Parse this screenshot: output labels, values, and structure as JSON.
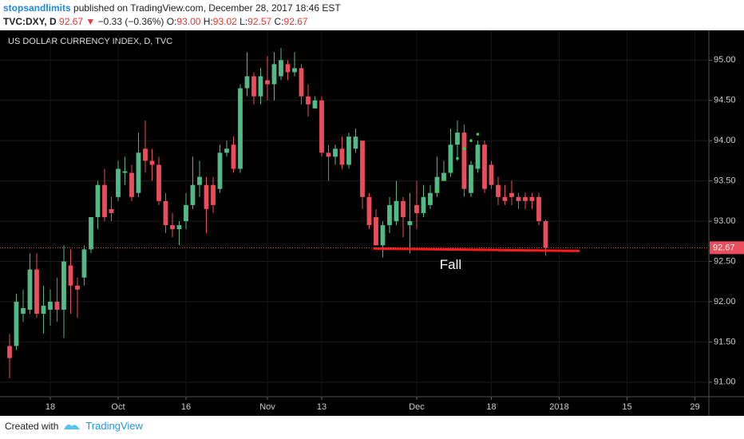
{
  "header": {
    "author": "stopsandlimits",
    "published": "published on TradingView.com, December 28, 2017 18:46 EST",
    "symbol": "TVC:DXY, D",
    "last": "92.67",
    "arrow": "▼",
    "change": "−0.33 (−0.36%)",
    "ohlc": [
      {
        "label": "O:",
        "value": "93.00"
      },
      {
        "label": "H:",
        "value": "93.02"
      },
      {
        "label": "L:",
        "value": "92.57"
      },
      {
        "label": "C:",
        "value": "92.67"
      }
    ]
  },
  "chart_data": {
    "type": "candlestick",
    "title": "US DOLLAR CURRENCY INDEX, D, TVC",
    "up_color": "#53b987",
    "down_color": "#eb4d5c",
    "open": [
      91.45,
      91.45,
      91.85,
      91.9,
      92.4,
      91.85,
      91.9,
      92.0,
      91.9,
      92.45,
      92.2,
      92.3,
      92.65,
      93.05,
      93.45,
      93.15,
      93.3,
      93.6,
      93.6,
      93.35,
      93.9,
      93.75,
      93.7,
      93.25,
      92.95,
      92.9,
      93.0,
      93.2,
      93.45,
      93.45,
      93.45,
      93.4,
      93.85,
      93.95,
      93.65,
      94.65,
      94.8,
      94.55,
      94.75,
      94.7,
      94.8,
      94.95,
      94.85,
      94.9,
      94.55,
      94.4,
      94.5,
      93.85,
      93.8,
      93.9,
      93.7,
      93.9,
      94.0,
      93.3,
      93.05,
      92.7,
      92.95,
      93.0,
      93.25,
      92.95,
      93.2,
      93.1,
      93.2,
      93.35,
      93.5,
      93.6,
      93.95,
      94.1,
      93.35,
      93.65,
      93.95,
      93.7,
      93.45,
      93.3,
      93.35,
      93.3,
      93.3,
      93.3,
      93.3,
      93.0
    ],
    "high": [
      91.6,
      92.1,
      92.15,
      92.6,
      92.6,
      92.2,
      92.15,
      92.3,
      92.7,
      92.65,
      92.3,
      92.7,
      93.05,
      93.5,
      93.65,
      93.3,
      93.75,
      93.8,
      93.7,
      94.1,
      94.25,
      93.9,
      93.8,
      93.35,
      93.1,
      93.0,
      93.35,
      93.8,
      93.75,
      93.55,
      93.55,
      93.95,
      94.0,
      94.05,
      94.7,
      95.1,
      94.85,
      94.9,
      95.05,
      95.1,
      95.15,
      95.0,
      95.1,
      94.95,
      94.7,
      94.55,
      94.55,
      93.95,
      93.95,
      94.05,
      94.1,
      94.15,
      94.0,
      93.35,
      93.15,
      93.0,
      93.3,
      93.5,
      93.3,
      93.35,
      93.5,
      93.45,
      93.45,
      93.8,
      93.75,
      94.15,
      94.25,
      94.2,
      93.75,
      94.0,
      94.0,
      93.75,
      93.55,
      93.45,
      93.5,
      93.35,
      93.35,
      93.35,
      93.35,
      93.02
    ],
    "low": [
      91.05,
      91.4,
      91.75,
      91.85,
      91.8,
      91.6,
      91.7,
      91.75,
      91.55,
      91.85,
      91.8,
      92.2,
      92.6,
      92.9,
      93.0,
      93.0,
      93.25,
      93.45,
      93.25,
      93.3,
      93.6,
      93.5,
      93.2,
      92.85,
      92.8,
      92.7,
      92.9,
      93.15,
      93.3,
      92.85,
      93.1,
      93.35,
      93.8,
      93.6,
      93.6,
      94.55,
      94.45,
      94.45,
      94.5,
      94.5,
      94.75,
      94.75,
      94.8,
      94.45,
      94.3,
      94.4,
      93.8,
      93.5,
      93.7,
      93.65,
      93.65,
      93.85,
      93.15,
      92.9,
      92.7,
      92.55,
      92.85,
      92.95,
      92.8,
      92.6,
      92.9,
      93.05,
      93.15,
      93.3,
      93.5,
      93.55,
      93.75,
      93.3,
      93.3,
      93.6,
      93.35,
      93.4,
      93.2,
      93.2,
      93.2,
      93.15,
      93.15,
      93.15,
      92.95,
      92.57
    ],
    "close": [
      91.3,
      92.0,
      91.92,
      92.4,
      91.85,
      91.95,
      92.0,
      91.9,
      92.5,
      92.2,
      92.15,
      92.65,
      93.05,
      93.45,
      93.05,
      93.1,
      93.65,
      93.62,
      93.3,
      93.85,
      93.75,
      93.7,
      93.25,
      92.95,
      92.9,
      92.95,
      93.2,
      93.45,
      93.55,
      93.15,
      93.2,
      93.85,
      93.9,
      93.65,
      94.65,
      94.8,
      94.55,
      94.8,
      94.7,
      94.95,
      95.0,
      94.85,
      94.9,
      94.55,
      94.45,
      94.5,
      93.85,
      93.8,
      93.9,
      93.7,
      94.05,
      94.05,
      93.3,
      92.95,
      92.7,
      92.95,
      93.2,
      93.25,
      93.05,
      93.0,
      93.1,
      93.3,
      93.35,
      93.55,
      93.6,
      93.95,
      94.1,
      93.4,
      93.7,
      93.95,
      93.4,
      93.45,
      93.3,
      93.25,
      93.3,
      93.25,
      93.25,
      93.25,
      93.0,
      92.67
    ],
    "sar_color": "#2fd64a",
    "sar": [
      null,
      null,
      null,
      null,
      null,
      null,
      null,
      null,
      null,
      null,
      null,
      null,
      null,
      null,
      null,
      null,
      null,
      null,
      null,
      null,
      null,
      null,
      null,
      null,
      null,
      null,
      null,
      null,
      null,
      null,
      null,
      null,
      null,
      null,
      null,
      null,
      null,
      null,
      null,
      null,
      null,
      null,
      null,
      null,
      null,
      null,
      null,
      null,
      null,
      null,
      null,
      null,
      null,
      null,
      null,
      null,
      null,
      null,
      null,
      null,
      null,
      null,
      93.25,
      93.38,
      93.52,
      93.65,
      93.78,
      93.9,
      94.0,
      94.08,
      null,
      null,
      null,
      null,
      null,
      null,
      null,
      null,
      null,
      null
    ],
    "trendline": {
      "x": [
        53.6,
        84
      ],
      "y": [
        92.66,
        92.63
      ],
      "color": "#ff1a1a"
    },
    "annotation": {
      "text": "Fall",
      "x": 65,
      "y": 92.45
    },
    "last_price": {
      "value": 92.67,
      "label": "92.67"
    },
    "xlim": [
      -1.41,
      103.06
    ],
    "ylim": [
      90.82,
      95.37
    ],
    "xticks": [
      {
        "value": 6,
        "label": "18"
      },
      {
        "value": 16,
        "label": "Oct"
      },
      {
        "value": 26,
        "label": "16"
      },
      {
        "value": 38,
        "label": "Nov"
      },
      {
        "value": 46,
        "label": "13"
      },
      {
        "value": 60,
        "label": "Dec"
      },
      {
        "value": 71,
        "label": "18"
      },
      {
        "value": 81,
        "label": "2018"
      },
      {
        "value": 91,
        "label": "15"
      },
      {
        "value": 101,
        "label": "29"
      }
    ],
    "yticks": [
      {
        "value": 91,
        "label": "91.00"
      },
      {
        "value": 91.5,
        "label": "91.50"
      },
      {
        "value": 92,
        "label": "92.00"
      },
      {
        "value": 92.5,
        "label": "92.50"
      },
      {
        "value": 93,
        "label": "93.00"
      },
      {
        "value": 93.5,
        "label": "93.50"
      },
      {
        "value": 94,
        "label": "94.00"
      },
      {
        "value": 94.5,
        "label": "94.50"
      },
      {
        "value": 95,
        "label": "95.00"
      }
    ],
    "grid": true
  },
  "footer": {
    "created": "Created with",
    "brand": "TradingView"
  }
}
